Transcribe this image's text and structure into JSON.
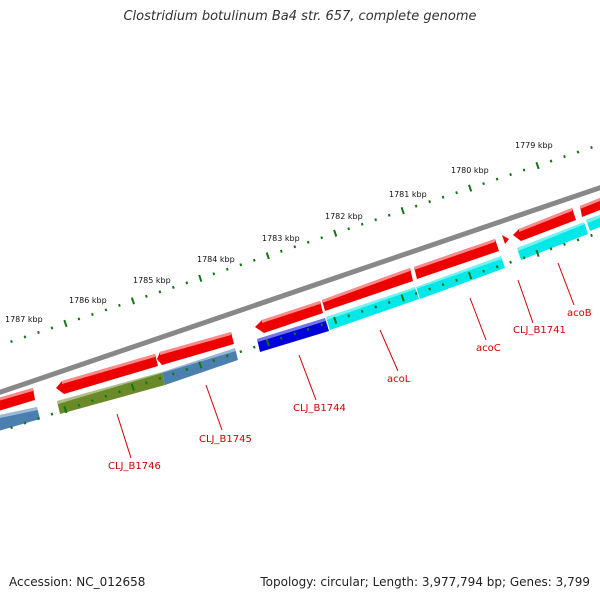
{
  "header": {
    "title": "Clostridium botulinum Ba4 str. 657, complete genome"
  },
  "footer": {
    "accession": "Accession: NC_012658",
    "summary": "Topology: circular; Length: 3,977,794 bp; Genes: 3,799"
  },
  "scale": {
    "ticks": [
      "1779 kbp",
      "1780 kbp",
      "1781 kbp",
      "1782 kbp",
      "1783 kbp",
      "1784 kbp",
      "1785 kbp",
      "1786 kbp",
      "1787 kbp"
    ]
  },
  "genes": {
    "labels": [
      "CLJ_B1746",
      "CLJ_B1745",
      "CLJ_B1744",
      "acoL",
      "acoC",
      "CLJ_B1741",
      "acoB"
    ]
  },
  "colors": {
    "backbone": "#888888",
    "cds": "#ee0000",
    "gene_label": "#cc0000",
    "tick": "#117711",
    "feature_cyan": "#00e8e8",
    "feature_blue": "#0000dd",
    "feature_steel": "#4a7fb0",
    "feature_olive": "#6a8a2a"
  }
}
